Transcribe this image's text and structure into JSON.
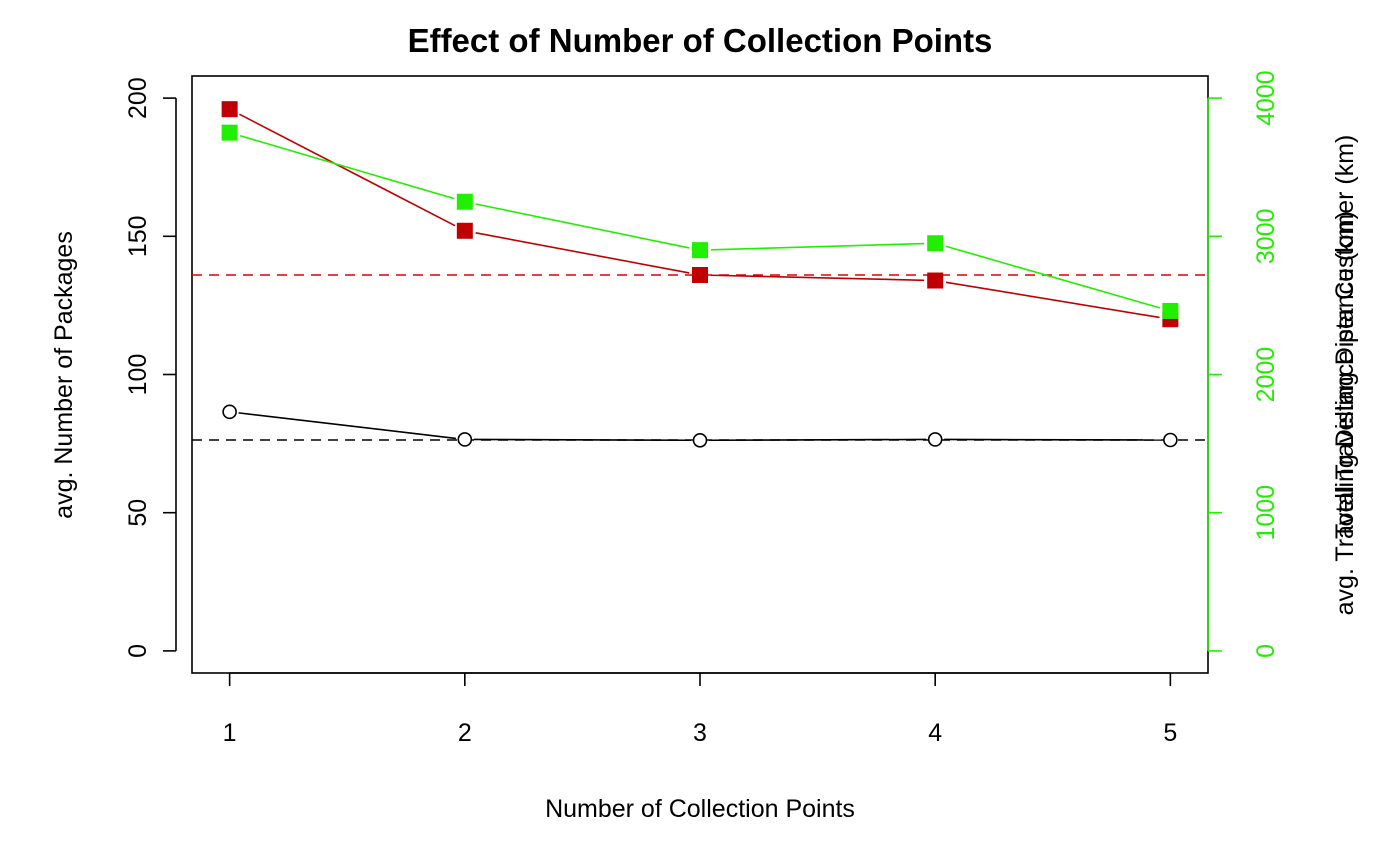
{
  "chart_data": {
    "type": "line",
    "title": "Effect of Number of Collection Points",
    "xlabel": "Number of Collection Points",
    "ylabel_left": "avg. Number of Packages",
    "ylabel_right": [
      "Total Travelling Distance (km)",
      "avg. Travelling Distance per Customer (km)"
    ],
    "x": [
      1,
      2,
      3,
      4,
      5
    ],
    "x_ticks": [
      "1",
      "2",
      "3",
      "4",
      "5"
    ],
    "xlim": [
      0.84,
      5.16
    ],
    "ylim_left": [
      -8,
      208
    ],
    "ylim_right": [
      -160,
      4160
    ],
    "y_ticks_left": [
      "0",
      "50",
      "100",
      "150",
      "200"
    ],
    "y_ticks_right": [
      "0",
      "1000",
      "2000",
      "3000",
      "4000"
    ],
    "series": [
      {
        "axis": "left",
        "color": "#000000",
        "marker": "open-circle",
        "values": [
          86.5,
          76.5,
          76.2,
          76.5,
          76.3
        ]
      },
      {
        "axis": "left",
        "color": "#c00000",
        "marker": "filled-square",
        "values": [
          196,
          152,
          136,
          134,
          120
        ]
      },
      {
        "axis": "right",
        "color": "#22ee00",
        "marker": "filled-square",
        "values": [
          3750,
          3250,
          2900,
          2950,
          2460
        ]
      }
    ],
    "reference_lines": [
      {
        "axis": "left",
        "y": 76.3,
        "color": "#000000",
        "style": "dashed"
      },
      {
        "axis": "left",
        "y": 136,
        "color": "#dd0000",
        "style": "dashed"
      }
    ],
    "colors": {
      "right_axis": "#22ee00",
      "red_series": "#c00000",
      "black_series": "#000000"
    },
    "grid": false,
    "legend": "none"
  }
}
